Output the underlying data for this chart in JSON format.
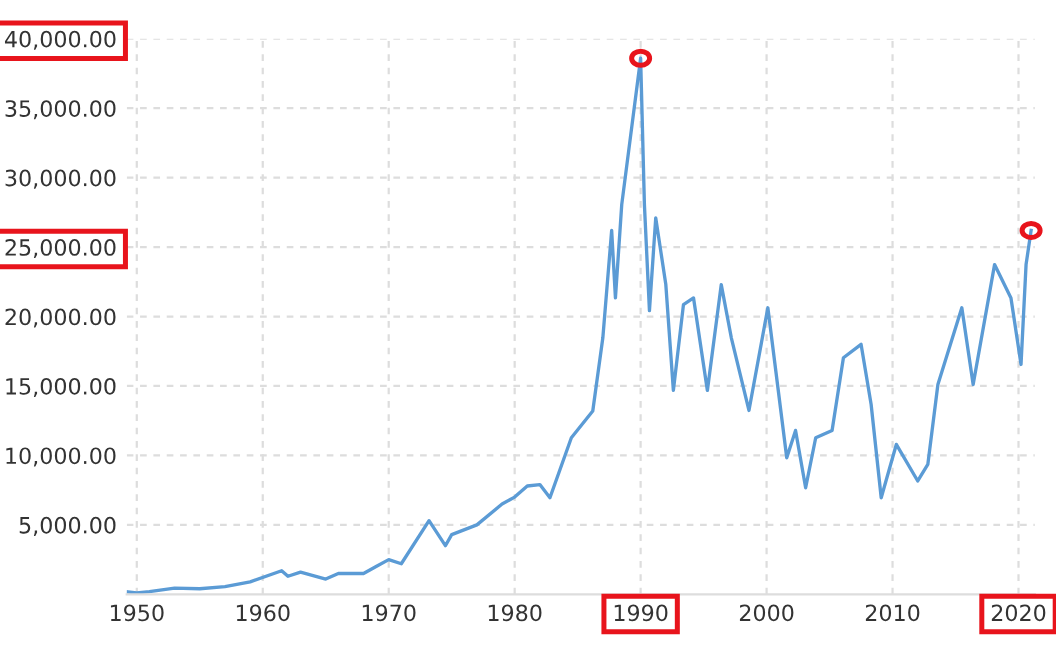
{
  "chart_data": {
    "type": "line",
    "color": "#5b9bd5",
    "x": [
      1949.3,
      1950,
      1951,
      1953,
      1955,
      1957,
      1959,
      1961.5,
      1962,
      1963,
      1965,
      1966,
      1968,
      1969,
      1970,
      1971,
      1973.2,
      1974.5,
      1975,
      1977,
      1979,
      1980,
      1981,
      1982,
      1982.8,
      1984.5,
      1986.2,
      1987,
      1987.7,
      1988,
      1988.5,
      1990,
      1990.3,
      1990.7,
      1991.2,
      1992,
      1992.6,
      1993.4,
      1994.2,
      1995.3,
      1996.4,
      1997.2,
      1998.6,
      2000.1,
      2001.6,
      2002.3,
      2003.1,
      2003.9,
      2005.2,
      2006.1,
      2007.5,
      2008.3,
      2009.1,
      2010.3,
      2012,
      2012.8,
      2013.6,
      2015.5,
      2016.4,
      2018.1,
      2019.4,
      2020.2,
      2020.6,
      2021
    ],
    "values": [
      170,
      100,
      200,
      450,
      400,
      550,
      900,
      1700,
      1300,
      1600,
      1100,
      1500,
      1500,
      2000,
      2500,
      2200,
      5300,
      3500,
      4300,
      5000,
      6500,
      7000,
      7800,
      7900,
      6950,
      11270,
      13200,
      18470,
      26200,
      21340,
      28060,
      38600,
      28060,
      20430,
      27100,
      22300,
      14680,
      20860,
      21340,
      14680,
      22300,
      18470,
      13240,
      20630,
      9830,
      11800,
      7670,
      11270,
      11800,
      17030,
      18000,
      13670,
      6950,
      10790,
      8160,
      9350,
      15110,
      20630,
      15110,
      23740,
      21340,
      16550,
      23740,
      26200
    ],
    "xlim": [
      1949.2,
      2021.3
    ],
    "xticks": [
      1950,
      1960,
      1970,
      1980,
      1990,
      2000,
      2010,
      2020
    ],
    "ylim": [
      0,
      40000
    ],
    "yticks": [
      {
        "value": 5000,
        "label": "5,000.00"
      },
      {
        "value": 10000,
        "label": "10,000.00"
      },
      {
        "value": 15000,
        "label": "15,000.00"
      },
      {
        "value": 20000,
        "label": "20,000.00"
      },
      {
        "value": 25000,
        "label": "25,000.00"
      },
      {
        "value": 30000,
        "label": "30,000.00"
      },
      {
        "value": 35000,
        "label": "35,000.00"
      },
      {
        "value": 40000,
        "label": "40,000.00"
      }
    ],
    "grid": true,
    "line_style": "solid",
    "marker": "none",
    "legend": false
  }
}
